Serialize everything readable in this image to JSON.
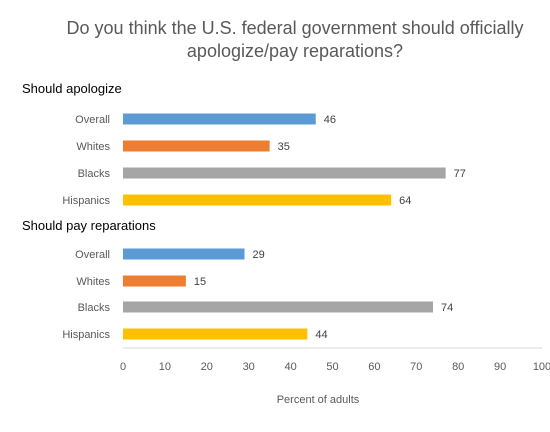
{
  "chart_data": {
    "type": "bar",
    "orientation": "horizontal",
    "title_lines": [
      "Do you think the U.S. federal government should officially",
      "apologize/pay reparations?"
    ],
    "xlabel": "Percent of adults",
    "xlim": [
      0,
      100
    ],
    "xticks": [
      "0",
      "10",
      "20",
      "30",
      "40",
      "50",
      "60",
      "70",
      "80",
      "90",
      "100"
    ],
    "grid": false,
    "groups": [
      {
        "label": "Should apologize",
        "bars": [
          {
            "category": "Overall",
            "value": 46,
            "color": "#5B9BD5"
          },
          {
            "category": "Whites",
            "value": 35,
            "color": "#ED7D31"
          },
          {
            "category": "Blacks",
            "value": 77,
            "color": "#A5A5A5"
          },
          {
            "category": "Hispanics",
            "value": 64,
            "color": "#FFC000"
          }
        ]
      },
      {
        "label": "Should pay reparations",
        "bars": [
          {
            "category": "Overall",
            "value": 29,
            "color": "#5B9BD5"
          },
          {
            "category": "Whites",
            "value": 15,
            "color": "#ED7D31"
          },
          {
            "category": "Blacks",
            "value": 74,
            "color": "#A5A5A5"
          },
          {
            "category": "Hispanics",
            "value": 44,
            "color": "#FFC000"
          }
        ]
      }
    ]
  }
}
